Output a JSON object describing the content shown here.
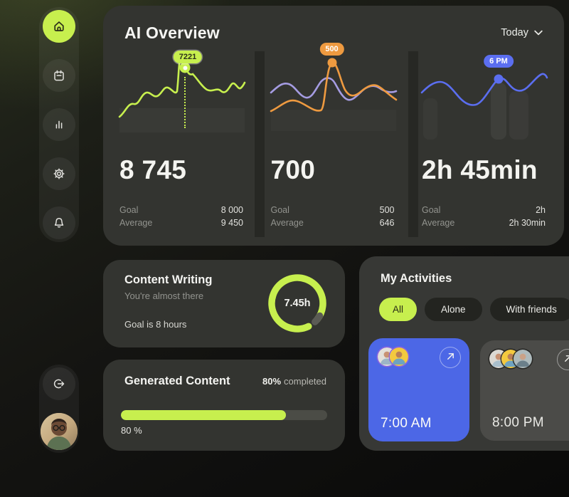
{
  "colors": {
    "lime": "#c7ef4e",
    "orange": "#ee9a40",
    "purple": "#a59ce2",
    "blue": "#5b6ef0",
    "blue-card": "#4c67e6",
    "card": "#333430",
    "gray-card": "#4b4b48",
    "pill-dark": "#232420",
    "track": "#4b4c46",
    "dim": "#92938e",
    "val": "#e2e2de",
    "text": "#f3f3f0"
  },
  "sidebar": {
    "icons": [
      "home-icon",
      "calendar-icon",
      "statistics-icon",
      "settings-icon",
      "notifications-icon",
      "logout-icon"
    ],
    "active_item": "home",
    "avatar_alt": "profile photo"
  },
  "header": {
    "title": "AI Overview",
    "period": "Today"
  },
  "stats": [
    {
      "tooltip": "7221",
      "value": "8 745",
      "goal_label": "Goal",
      "goal_value": "8 000",
      "average_label": "Average",
      "average_value": "9 450"
    },
    {
      "tooltip": "500",
      "value": "700",
      "goal_label": "Goal",
      "goal_value": "500",
      "average_label": "Average",
      "average_value": "646"
    },
    {
      "tooltip": "6 PM",
      "value": "2h 45min",
      "goal_label": "Goal",
      "goal_value": "2h",
      "average_label": "Average",
      "average_value": "2h 30min"
    }
  ],
  "content_writing": {
    "title": "Content Writing",
    "subtitle": "You're almost there",
    "goal_text": "Goal is 8 hours",
    "progress_label": "7.45h",
    "progress_percent": 93
  },
  "generated_content": {
    "title": "Generated Content",
    "completed_bold": "80%",
    "completed_rest": "completed",
    "bar_percent": 80,
    "bar_label": "80 %"
  },
  "activities": {
    "title": "My Activities",
    "filters": [
      {
        "label": "All",
        "active": true
      },
      {
        "label": "Alone",
        "active": false
      },
      {
        "label": "With friends",
        "active": false
      }
    ],
    "cards": [
      {
        "time": "7:00 AM",
        "style": "blue",
        "avatar_count": 2
      },
      {
        "time": "8:00 PM",
        "style": "gray",
        "avatar_count": 3
      }
    ]
  },
  "chart_data": [
    {
      "type": "line",
      "series": [
        {
          "name": "writing activity",
          "color": "#c7ef4e"
        }
      ],
      "highlight_label": "7221",
      "grid": false
    },
    {
      "type": "line",
      "series": [
        {
          "name": "generated",
          "color": "#ee9a40"
        },
        {
          "name": "secondary",
          "color": "#a59ce2"
        }
      ],
      "highlight_label": "500",
      "grid": false
    },
    {
      "type": "line",
      "series": [
        {
          "name": "time spent",
          "color": "#5b6ef0"
        }
      ],
      "highlight_label": "6 PM",
      "grid": false
    }
  ]
}
